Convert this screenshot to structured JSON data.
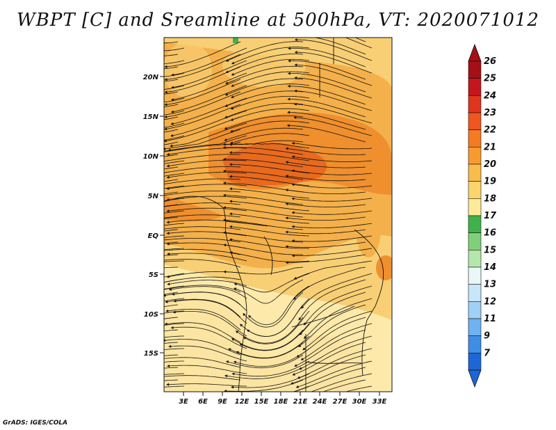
{
  "title": "WBPT [C] and Sreamline at 500hPa, VT: 2020071012",
  "credit": "GrADS: IGES/COLA",
  "map": {
    "lat_labels": [
      "20N",
      "15N",
      "10N",
      "5N",
      "EQ",
      "5S",
      "10S",
      "15S"
    ],
    "lon_labels": [
      "3E",
      "6E",
      "9E",
      "12E",
      "15E",
      "18E",
      "21E",
      "24E",
      "27E",
      "30E",
      "33E"
    ],
    "fill_colors": {
      "very_light": "#fde9a9",
      "light": "#f8cf74",
      "medium": "#f4b04a",
      "orange": "#ef8f2d",
      "deep": "#e86a1e"
    }
  },
  "colorbar": {
    "labels": [
      "26",
      "25",
      "24",
      "23",
      "22",
      "21",
      "20",
      "19",
      "18",
      "17",
      "16",
      "15",
      "14",
      "13",
      "12",
      "11",
      "9",
      "7"
    ],
    "colors": [
      "#a50f15",
      "#c4161c",
      "#e0341f",
      "#f0561f",
      "#f47a23",
      "#f79b2f",
      "#f9bc4b",
      "#fbd56b",
      "#fdeb9a",
      "#3fb24a",
      "#7fd07a",
      "#b5e7ac",
      "#e9f7f7",
      "#c7e6f9",
      "#9fd0f5",
      "#6fb2ef",
      "#3f8ee5",
      "#1d66d8"
    ]
  }
}
